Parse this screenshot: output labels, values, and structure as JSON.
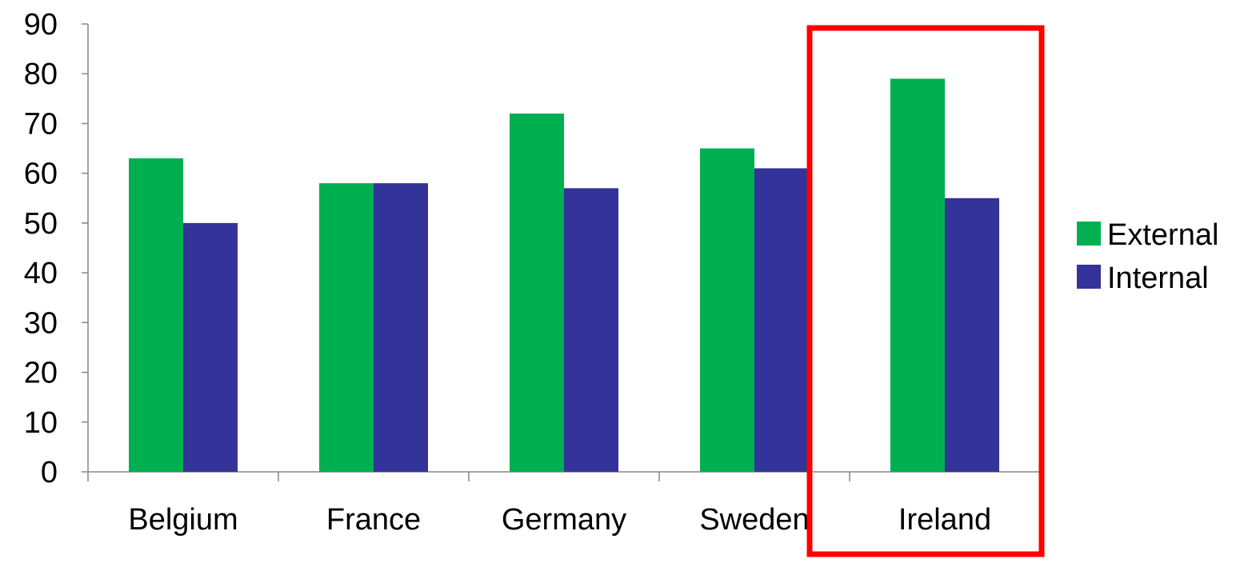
{
  "chart_data": {
    "type": "bar",
    "categories": [
      "Belgium",
      "France",
      "Germany",
      "Sweden",
      "Ireland"
    ],
    "series": [
      {
        "name": "External",
        "values": [
          63,
          58,
          72,
          65,
          79
        ],
        "color": "#00b050"
      },
      {
        "name": "Internal",
        "values": [
          50,
          58,
          57,
          61,
          55
        ],
        "color": "#333399"
      }
    ],
    "ylim": [
      0,
      90
    ],
    "yticks": [
      0,
      10,
      20,
      30,
      40,
      50,
      60,
      70,
      80,
      90
    ],
    "grid": false,
    "legend": "right",
    "highlight": {
      "category": "Ireland",
      "color": "#ff0000"
    }
  }
}
